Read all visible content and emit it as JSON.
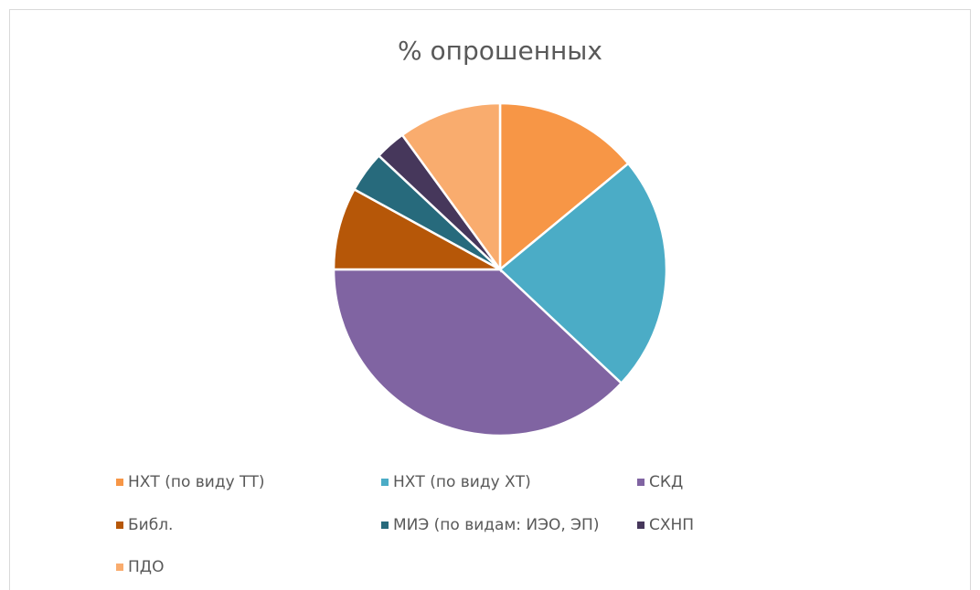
{
  "chart_data": {
    "type": "pie",
    "title": "% опрошенных",
    "categories": [
      "НХТ (по виду ТТ)",
      "НХТ (по виду ХТ)",
      "СКД",
      "Библ.",
      "МИЭ (по видам: ИЭО, ЭП)",
      "СХНП",
      "ПДО"
    ],
    "values": [
      14,
      23,
      38,
      8,
      4,
      3,
      10
    ],
    "colors": [
      "#f79646",
      "#4bacc6",
      "#8064a2",
      "#b65708",
      "#276a7c",
      "#46375b",
      "#f9ac6e"
    ],
    "legend": "bottom"
  }
}
